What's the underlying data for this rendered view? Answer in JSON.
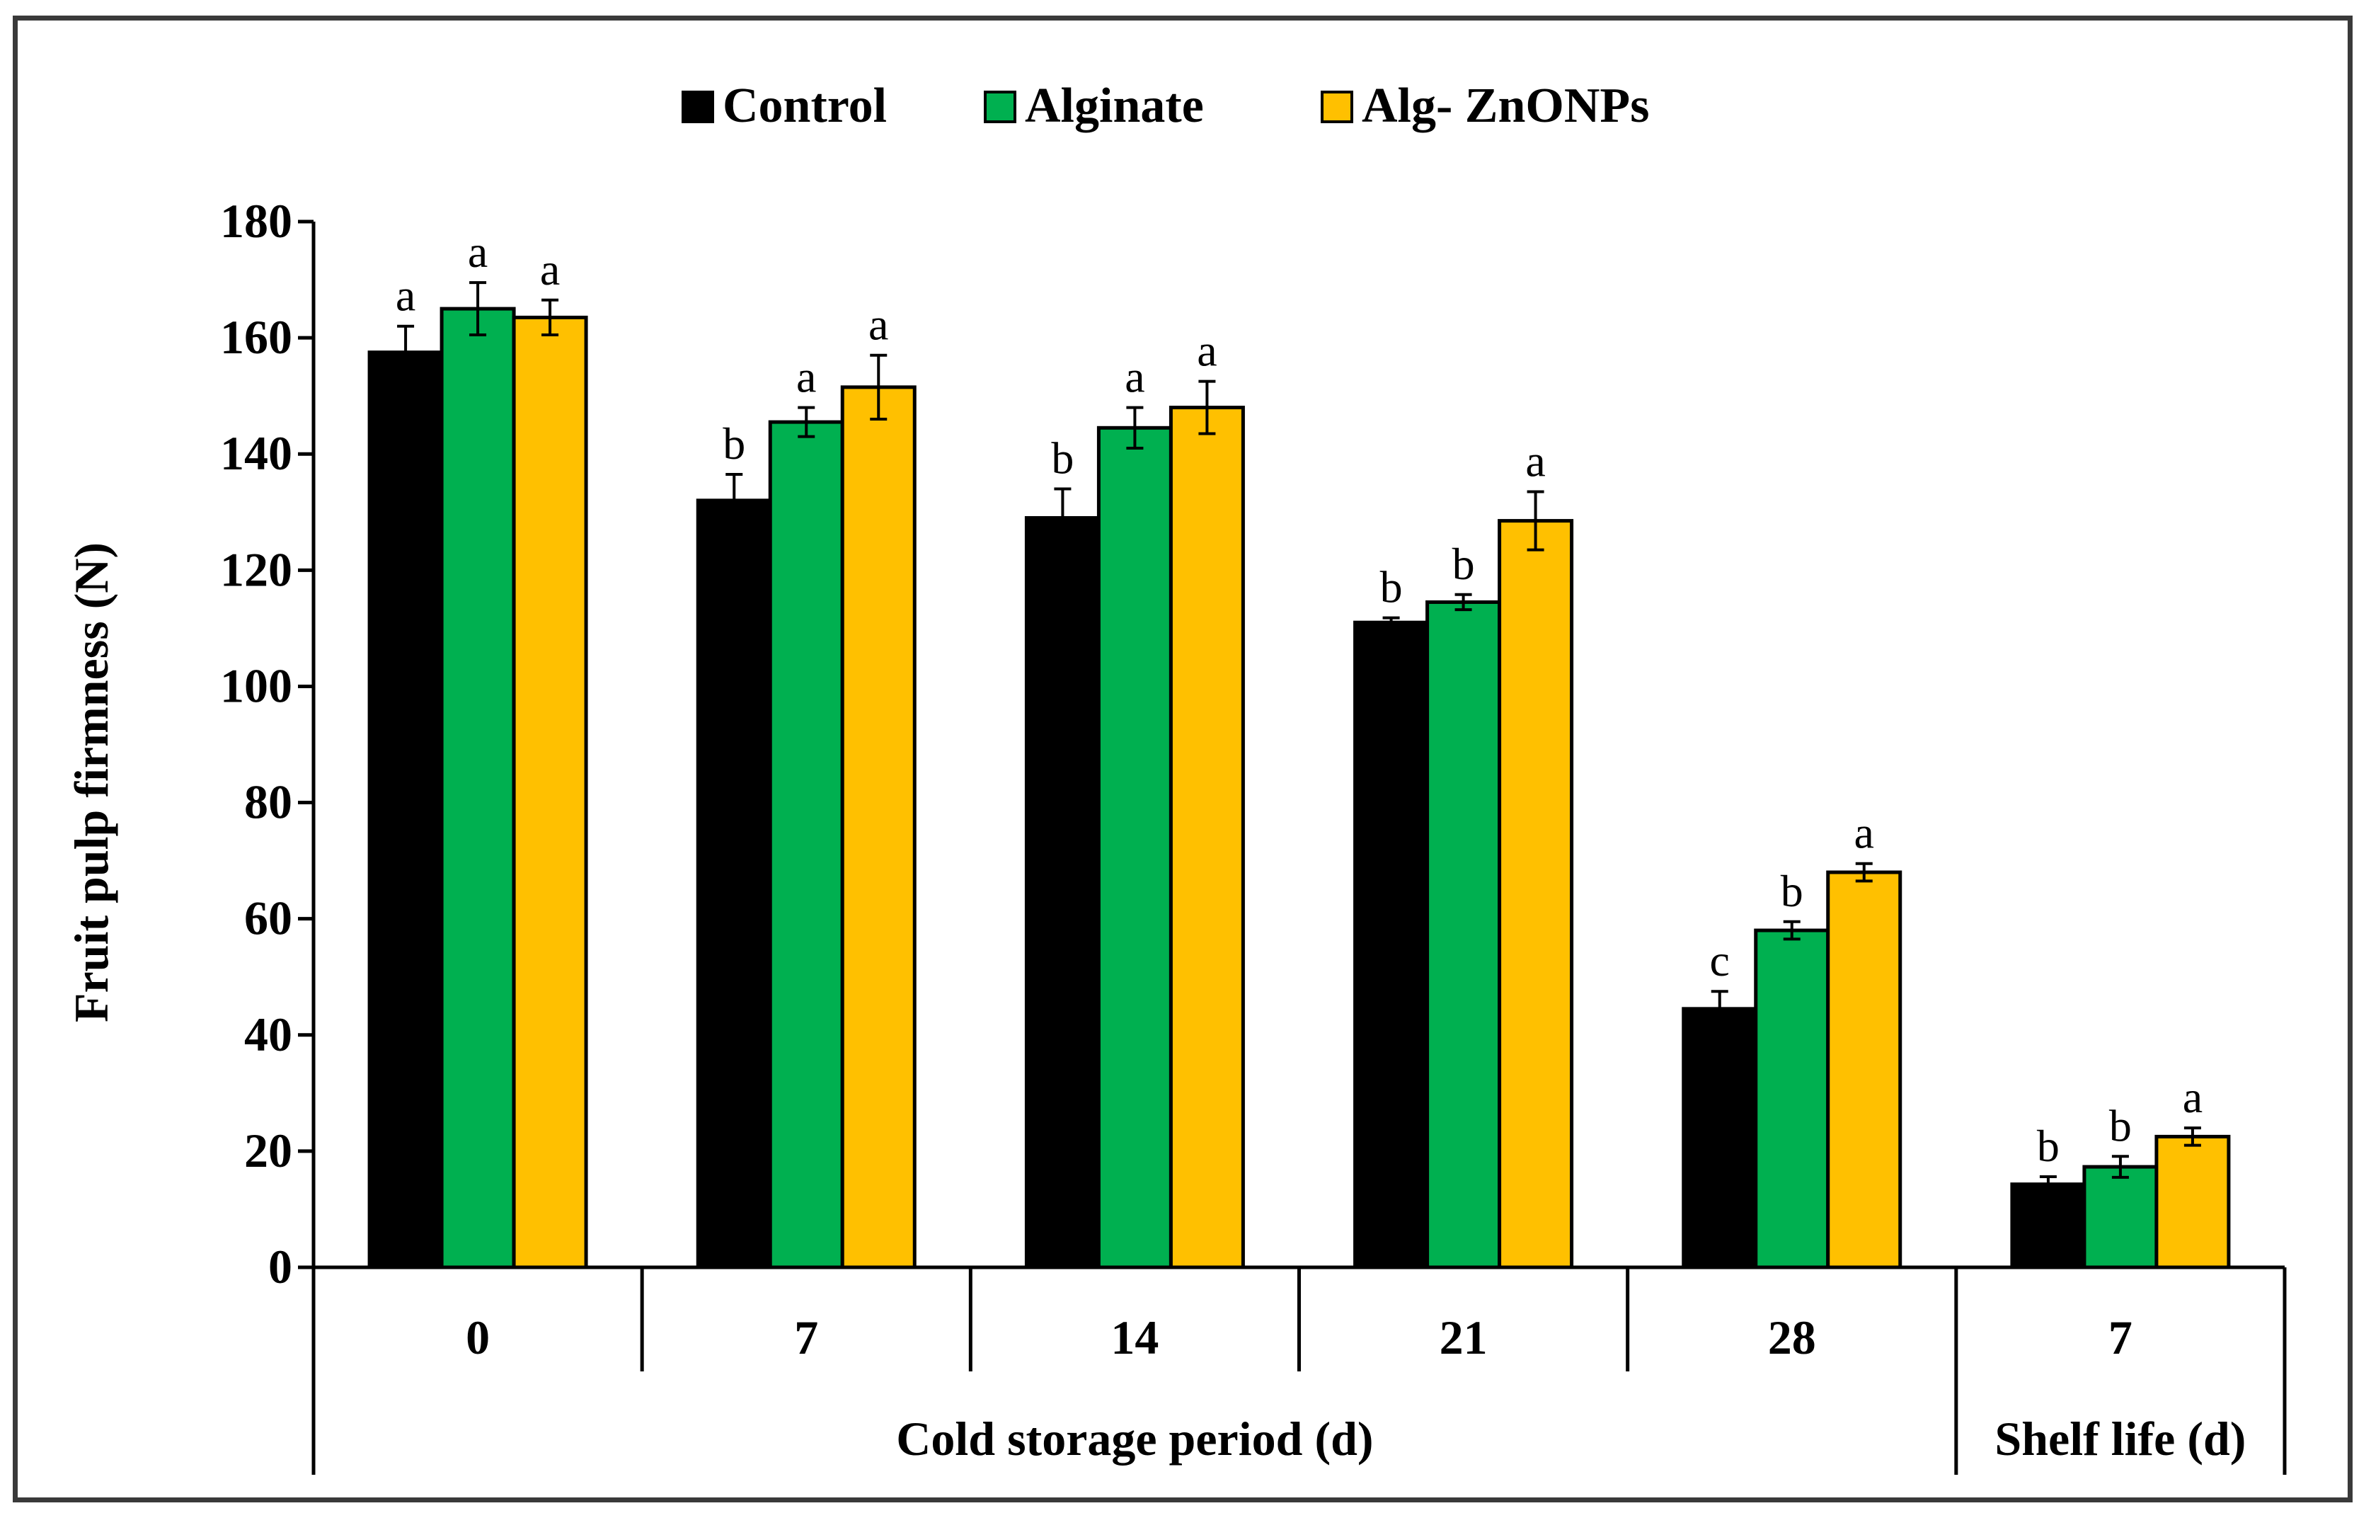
{
  "chart_data": {
    "type": "bar",
    "title": "",
    "ylabel": "Fruit pulp firmness (N)",
    "ylim": [
      0,
      180
    ],
    "yticks": [
      0,
      20,
      40,
      60,
      80,
      100,
      120,
      140,
      160,
      180
    ],
    "legend_position": "top-center",
    "categories": [
      "0",
      "7",
      "14",
      "21",
      "28",
      "7"
    ],
    "groups": [
      {
        "label": "Cold storage period (d)",
        "categories": [
          "0",
          "7",
          "14",
          "21",
          "28"
        ]
      },
      {
        "label": "Shelf life (d)",
        "categories": [
          "7"
        ]
      }
    ],
    "series": [
      {
        "name": "Control",
        "color": "#000000",
        "values": [
          157.5,
          132.0,
          129.0,
          111.0,
          44.5,
          14.3
        ],
        "errors": [
          4.5,
          4.5,
          5.0,
          0.8,
          3.0,
          1.3
        ],
        "letters": [
          "a",
          "b",
          "b",
          "b",
          "c",
          "b"
        ]
      },
      {
        "name": "Alginate",
        "color": "#00b050",
        "values": [
          165.0,
          145.5,
          144.5,
          114.5,
          58.0,
          17.3
        ],
        "errors": [
          4.5,
          2.5,
          3.5,
          1.3,
          1.5,
          1.8
        ],
        "letters": [
          "a",
          "a",
          "a",
          "b",
          "b",
          "b"
        ]
      },
      {
        "name": "Alg- ZnONPs",
        "color": "#ffc000",
        "values": [
          163.5,
          151.5,
          148.0,
          128.5,
          68.0,
          22.5
        ],
        "errors": [
          3.0,
          5.5,
          4.5,
          5.0,
          1.5,
          1.5
        ],
        "letters": [
          "a",
          "a",
          "a",
          "a",
          "a",
          "a"
        ]
      }
    ]
  }
}
